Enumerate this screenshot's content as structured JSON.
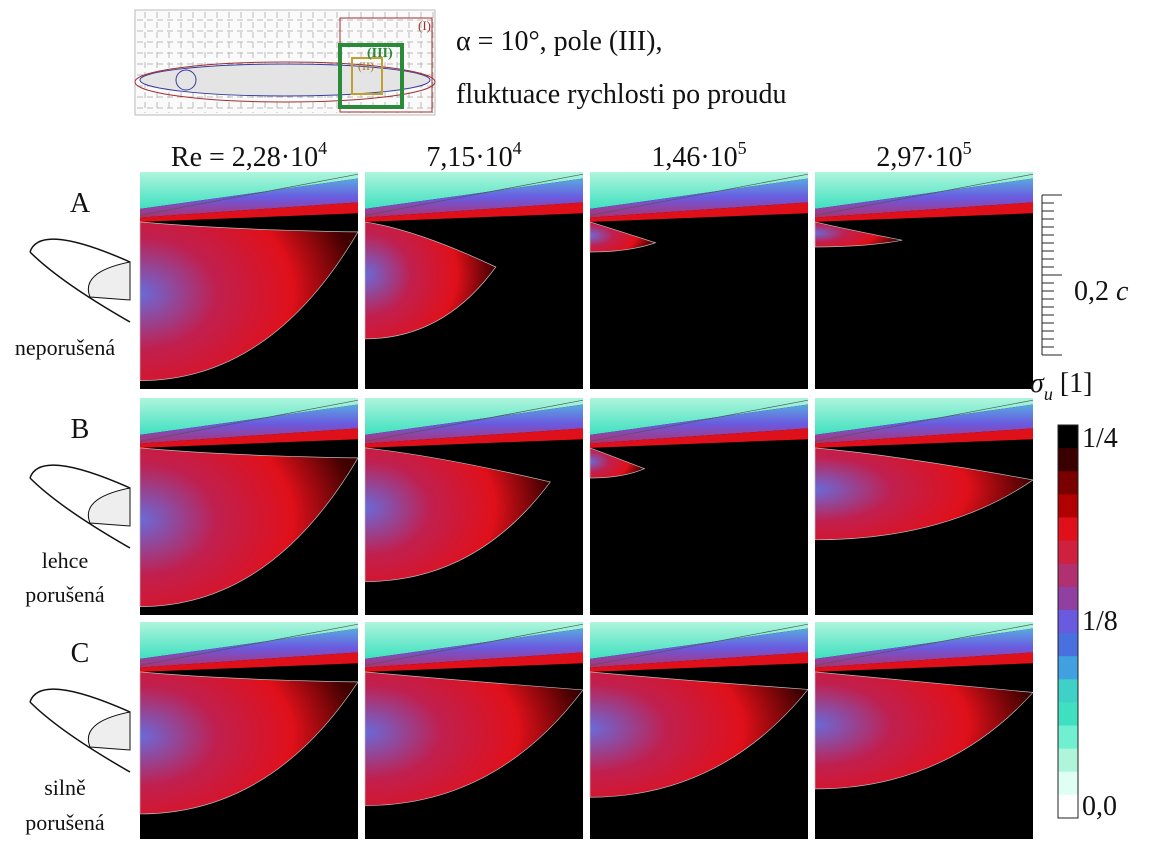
{
  "inset": {
    "labels": [
      "(I)",
      "(II)",
      "(III)"
    ]
  },
  "title": {
    "lines": [
      "α = 10°, pole (III),",
      "fluktuace rychlosti po proudu"
    ]
  },
  "columns": [
    {
      "base": "Re = 2,28·10",
      "exp": "4"
    },
    {
      "base": "7,15·10",
      "exp": "4"
    },
    {
      "base": "1,46·10",
      "exp": "5"
    },
    {
      "base": "2,97·10",
      "exp": "5"
    }
  ],
  "rows": [
    {
      "letter": "A",
      "description": [
        "neporušená"
      ]
    },
    {
      "letter": "B",
      "description": [
        "lehce",
        "porušená"
      ]
    },
    {
      "letter": "C",
      "description": [
        "silně",
        "porušená"
      ]
    }
  ],
  "scale_bar": {
    "label": "0,2",
    "unit": "c"
  },
  "colorbar": {
    "symbol": "σ",
    "subscript": "u",
    "unit": "[1]",
    "labels": [
      "1/4",
      "1/8",
      "0,0"
    ]
  }
}
